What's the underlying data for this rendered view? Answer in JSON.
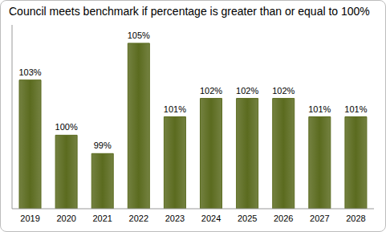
{
  "chart_data": {
    "type": "bar",
    "title": "Council meets benchmark if percentage is greater than or equal to 100%",
    "categories": [
      "2019",
      "2020",
      "2021",
      "2022",
      "2023",
      "2024",
      "2025",
      "2026",
      "2027",
      "2028"
    ],
    "values": [
      103,
      100,
      99,
      105,
      101,
      102,
      102,
      102,
      101,
      101
    ],
    "value_labels": [
      "103%",
      "100%",
      "99%",
      "105%",
      "101%",
      "102%",
      "102%",
      "102%",
      "101%",
      "101%"
    ],
    "color": "#5b6b1f",
    "ylim": [
      96,
      106
    ],
    "grid": false,
    "data_labels": true,
    "tick_labels": "x"
  }
}
